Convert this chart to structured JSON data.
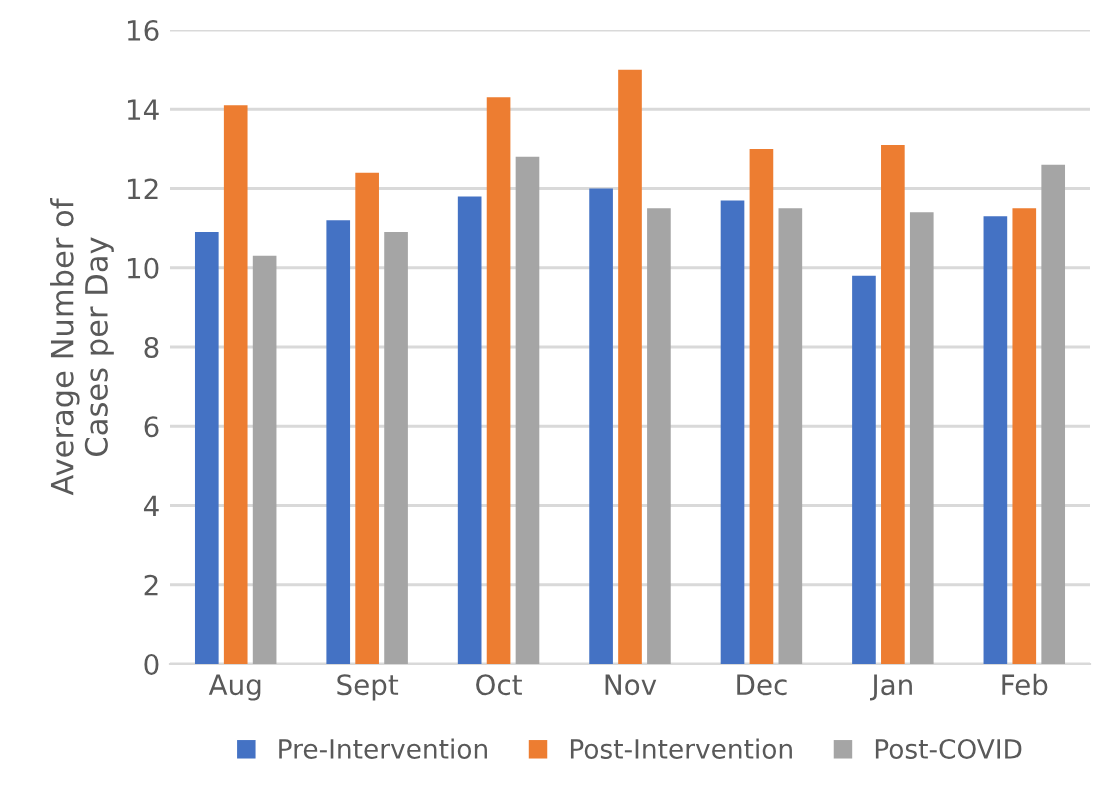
{
  "chart_data": {
    "type": "bar",
    "ylabel": "Average Number of\nCases per Day",
    "categories": [
      "Aug",
      "Sept",
      "Oct",
      "Nov",
      "Dec",
      "Jan",
      "Feb"
    ],
    "series": [
      {
        "name": "Pre-Intervention",
        "color": "#4472c4",
        "values": [
          10.9,
          11.2,
          11.8,
          12.0,
          11.7,
          9.8,
          11.3
        ]
      },
      {
        "name": "Post-Intervention",
        "color": "#ed7d31",
        "values": [
          14.1,
          12.4,
          14.3,
          15.0,
          13.0,
          13.1,
          11.5
        ]
      },
      {
        "name": "Post-COVID",
        "color": "#a5a5a5",
        "values": [
          10.3,
          10.9,
          12.8,
          11.5,
          11.5,
          11.4,
          12.6
        ]
      }
    ],
    "ylim": [
      0,
      16
    ],
    "yticks": [
      0,
      2,
      4,
      6,
      8,
      10,
      12,
      14,
      16
    ],
    "grid": "y",
    "legend": "bottom"
  }
}
